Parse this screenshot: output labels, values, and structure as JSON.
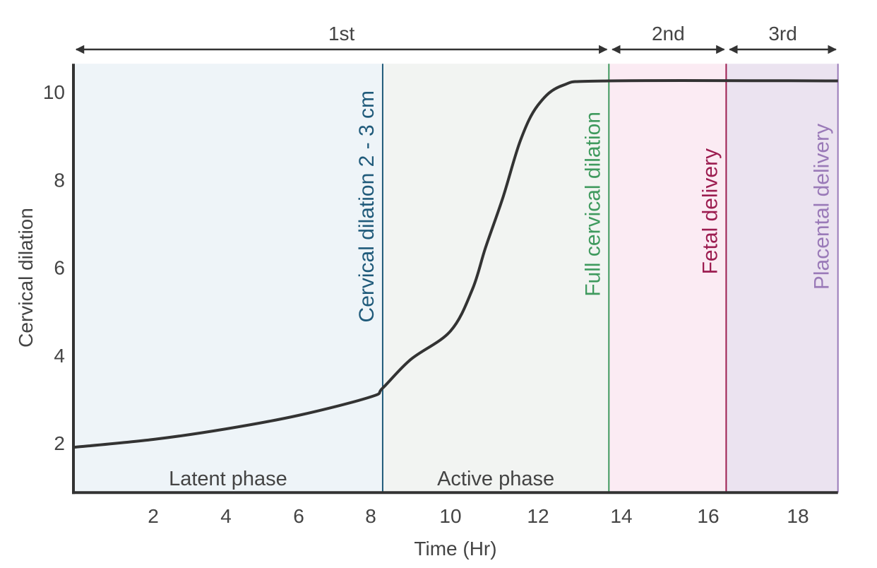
{
  "chart_data": {
    "type": "line",
    "title": "",
    "xlabel": "Time (Hr)",
    "ylabel": "Cervical dilation",
    "xlim": [
      -0.15,
      18.9
    ],
    "ylim": [
      0.87,
      10.64
    ],
    "xticks": [
      2,
      4,
      6,
      8,
      10,
      12,
      14,
      16,
      18
    ],
    "yticks": [
      2,
      4,
      6,
      8,
      10
    ],
    "grid": false,
    "series": [
      {
        "name": "Cervical dilation curve",
        "color": "#333333",
        "x": [
          -0.15,
          2,
          4,
          6,
          8,
          8.3,
          9.0,
          10,
          10.5,
          10.8,
          11.2,
          11.6,
          12,
          12.6,
          13.7,
          18.9
        ],
        "y": [
          1.9,
          2.08,
          2.32,
          2.63,
          3.05,
          3.25,
          3.9,
          4.55,
          5.5,
          6.45,
          7.6,
          8.9,
          9.7,
          10.15,
          10.25,
          10.25
        ]
      }
    ],
    "regions": [
      {
        "name": "latent",
        "label": "Latent phase",
        "from": -0.15,
        "to": 8.3,
        "color": "#eef4f8"
      },
      {
        "name": "active",
        "label": "Active phase",
        "from": 8.3,
        "to": 13.7,
        "color": "#f2f4f2"
      },
      {
        "name": "second",
        "label": "",
        "from": 13.7,
        "to": 16.4,
        "color": "#fbebf3"
      },
      {
        "name": "third",
        "label": "",
        "from": 16.4,
        "to": 18.9,
        "color": "#ebe3f0"
      }
    ],
    "markers": [
      {
        "name": "cervical-dilation-2-3cm",
        "label": "Cervical dilation 2 - 3 cm",
        "x": 8.3,
        "color": "#1f5a7a"
      },
      {
        "name": "full-cervical-dilation",
        "label": "Full cervical dilation",
        "x": 13.7,
        "color": "#3f9a5e"
      },
      {
        "name": "fetal-delivery",
        "label": "Fetal delivery",
        "x": 16.4,
        "color": "#9c1d50"
      },
      {
        "name": "placental-delivery",
        "label": "Placental delivery",
        "x": 18.9,
        "color": "#9a7ab8"
      }
    ],
    "stages": [
      {
        "label": "1st",
        "from": -0.15,
        "to": 13.7
      },
      {
        "label": "2nd",
        "from": 13.7,
        "to": 16.4
      },
      {
        "label": "3rd",
        "from": 16.4,
        "to": 18.9
      }
    ]
  }
}
